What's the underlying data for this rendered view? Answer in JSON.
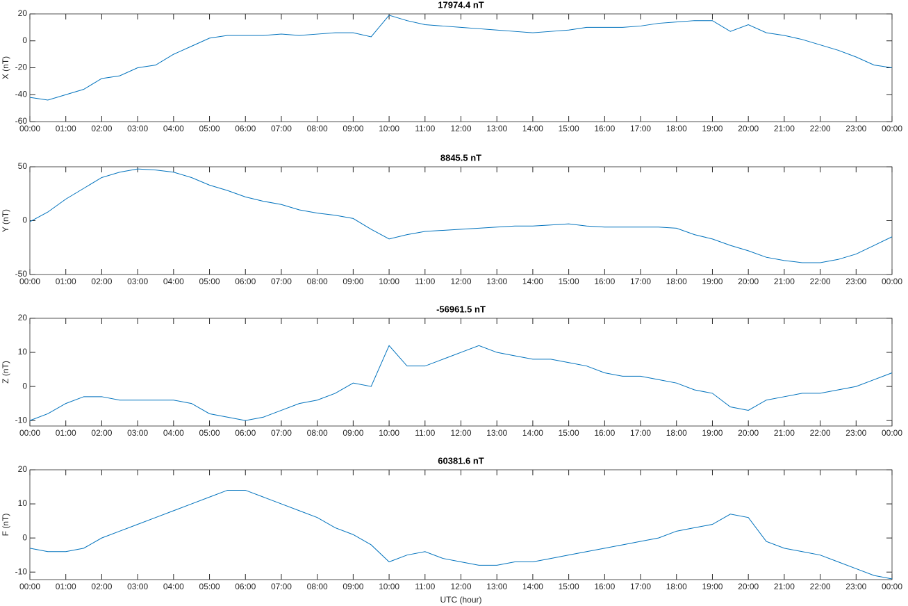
{
  "chart_data": [
    {
      "type": "line",
      "title": "17974.4 nT",
      "ylabel": "X (nT)",
      "color": "#0072bd",
      "x": [
        0,
        0.5,
        1,
        1.5,
        2,
        2.5,
        3,
        3.5,
        4,
        4.5,
        5,
        5.5,
        6,
        6.5,
        7,
        7.5,
        8,
        8.5,
        9,
        9.5,
        10,
        10.5,
        11,
        11.5,
        12,
        12.5,
        13,
        13.5,
        14,
        14.5,
        15,
        15.5,
        16,
        16.5,
        17,
        17.5,
        18,
        18.5,
        19,
        19.5,
        20,
        20.5,
        21,
        21.5,
        22,
        22.5,
        23,
        23.5,
        24
      ],
      "values": [
        -42,
        -44,
        -40,
        -36,
        -28,
        -26,
        -20,
        -18,
        -10,
        -4,
        2,
        4,
        4,
        4,
        5,
        4,
        5,
        6,
        6,
        3,
        19,
        15,
        12,
        11,
        10,
        9,
        8,
        7,
        6,
        7,
        8,
        10,
        10,
        10,
        11,
        13,
        14,
        15,
        15,
        7,
        12,
        6,
        4,
        1,
        -3,
        -7,
        -12,
        -18,
        -20
      ],
      "xlim": [
        0,
        24
      ],
      "ylim": [
        -60,
        20
      ],
      "yticks": [
        -60,
        -40,
        -20,
        0,
        20
      ],
      "xticks": [
        {
          "value": 0,
          "label": "00:00"
        },
        {
          "value": 1,
          "label": "01:00"
        },
        {
          "value": 2,
          "label": "02:00"
        },
        {
          "value": 3,
          "label": "03:00"
        },
        {
          "value": 4,
          "label": "04:00"
        },
        {
          "value": 5,
          "label": "05:00"
        },
        {
          "value": 6,
          "label": "06:00"
        },
        {
          "value": 7,
          "label": "07:00"
        },
        {
          "value": 8,
          "label": "08:00"
        },
        {
          "value": 9,
          "label": "09:00"
        },
        {
          "value": 10,
          "label": "10:00"
        },
        {
          "value": 11,
          "label": "11:00"
        },
        {
          "value": 12,
          "label": "12:00"
        },
        {
          "value": 13,
          "label": "13:00"
        },
        {
          "value": 14,
          "label": "14:00"
        },
        {
          "value": 15,
          "label": "15:00"
        },
        {
          "value": 16,
          "label": "16:00"
        },
        {
          "value": 17,
          "label": "17:00"
        },
        {
          "value": 18,
          "label": "18:00"
        },
        {
          "value": 19,
          "label": "19:00"
        },
        {
          "value": 20,
          "label": "20:00"
        },
        {
          "value": 21,
          "label": "21:00"
        },
        {
          "value": 22,
          "label": "22:00"
        },
        {
          "value": 23,
          "label": "23:00"
        },
        {
          "value": 24,
          "label": "00:00"
        }
      ]
    },
    {
      "type": "line",
      "title": "8845.5 nT",
      "ylabel": "Y (nT)",
      "color": "#0072bd",
      "x": [
        0,
        0.5,
        1,
        1.5,
        2,
        2.5,
        3,
        3.5,
        4,
        4.5,
        5,
        5.5,
        6,
        6.5,
        7,
        7.5,
        8,
        8.5,
        9,
        9.5,
        10,
        10.5,
        11,
        11.5,
        12,
        12.5,
        13,
        13.5,
        14,
        14.5,
        15,
        15.5,
        16,
        16.5,
        17,
        17.5,
        18,
        18.5,
        19,
        19.5,
        20,
        20.5,
        21,
        21.5,
        22,
        22.5,
        23,
        23.5,
        24
      ],
      "values": [
        -1,
        8,
        20,
        30,
        40,
        45,
        48,
        47,
        45,
        40,
        33,
        28,
        22,
        18,
        15,
        10,
        7,
        5,
        2,
        -8,
        -17,
        -13,
        -10,
        -9,
        -8,
        -7,
        -6,
        -5,
        -5,
        -4,
        -3,
        -5,
        -6,
        -6,
        -6,
        -6,
        -7,
        -13,
        -17,
        -23,
        -28,
        -34,
        -37,
        -39,
        -39,
        -36,
        -31,
        -23,
        -15
      ],
      "xlim": [
        0,
        24
      ],
      "ylim": [
        -50,
        50
      ],
      "yticks": [
        -50,
        0,
        50
      ],
      "xticks": [
        {
          "value": 0,
          "label": "00:00"
        },
        {
          "value": 1,
          "label": "01:00"
        },
        {
          "value": 2,
          "label": "02:00"
        },
        {
          "value": 3,
          "label": "03:00"
        },
        {
          "value": 4,
          "label": "04:00"
        },
        {
          "value": 5,
          "label": "05:00"
        },
        {
          "value": 6,
          "label": "06:00"
        },
        {
          "value": 7,
          "label": "07:00"
        },
        {
          "value": 8,
          "label": "08:00"
        },
        {
          "value": 9,
          "label": "09:00"
        },
        {
          "value": 10,
          "label": "10:00"
        },
        {
          "value": 11,
          "label": "11:00"
        },
        {
          "value": 12,
          "label": "12:00"
        },
        {
          "value": 13,
          "label": "13:00"
        },
        {
          "value": 14,
          "label": "14:00"
        },
        {
          "value": 15,
          "label": "15:00"
        },
        {
          "value": 16,
          "label": "16:00"
        },
        {
          "value": 17,
          "label": "17:00"
        },
        {
          "value": 18,
          "label": "18:00"
        },
        {
          "value": 19,
          "label": "19:00"
        },
        {
          "value": 20,
          "label": "20:00"
        },
        {
          "value": 21,
          "label": "21:00"
        },
        {
          "value": 22,
          "label": "22:00"
        },
        {
          "value": 23,
          "label": "23:00"
        },
        {
          "value": 24,
          "label": "00:00"
        }
      ]
    },
    {
      "type": "line",
      "title": "-56961.5 nT",
      "ylabel": "Z (nT)",
      "color": "#0072bd",
      "x": [
        0,
        0.5,
        1,
        1.5,
        2,
        2.5,
        3,
        3.5,
        4,
        4.5,
        5,
        5.5,
        6,
        6.5,
        7,
        7.5,
        8,
        8.5,
        9,
        9.5,
        10,
        10.5,
        11,
        11.5,
        12,
        12.5,
        13,
        13.5,
        14,
        14.5,
        15,
        15.5,
        16,
        16.5,
        17,
        17.5,
        18,
        18.5,
        19,
        19.5,
        20,
        20.5,
        21,
        21.5,
        22,
        22.5,
        23,
        23.5,
        24
      ],
      "values": [
        -10,
        -8,
        -5,
        -3,
        -3,
        -4,
        -4,
        -4,
        -4,
        -5,
        -8,
        -9,
        -10,
        -9,
        -7,
        -5,
        -4,
        -2,
        1,
        0,
        12,
        6,
        6,
        8,
        10,
        12,
        10,
        9,
        8,
        8,
        7,
        6,
        4,
        3,
        3,
        2,
        1,
        -1,
        -2,
        -6,
        -7,
        -4,
        -3,
        -2,
        -2,
        -1,
        0,
        2,
        4
      ],
      "xlim": [
        0,
        24
      ],
      "ylim": [
        -11.6,
        20
      ],
      "yticks": [
        -10,
        0,
        10,
        20
      ],
      "xticks": [
        {
          "value": 0,
          "label": "00:00"
        },
        {
          "value": 1,
          "label": "01:00"
        },
        {
          "value": 2,
          "label": "02:00"
        },
        {
          "value": 3,
          "label": "03:00"
        },
        {
          "value": 4,
          "label": "04:00"
        },
        {
          "value": 5,
          "label": "05:00"
        },
        {
          "value": 6,
          "label": "06:00"
        },
        {
          "value": 7,
          "label": "07:00"
        },
        {
          "value": 8,
          "label": "08:00"
        },
        {
          "value": 9,
          "label": "09:00"
        },
        {
          "value": 10,
          "label": "10:00"
        },
        {
          "value": 11,
          "label": "11:00"
        },
        {
          "value": 12,
          "label": "12:00"
        },
        {
          "value": 13,
          "label": "13:00"
        },
        {
          "value": 14,
          "label": "14:00"
        },
        {
          "value": 15,
          "label": "15:00"
        },
        {
          "value": 16,
          "label": "16:00"
        },
        {
          "value": 17,
          "label": "17:00"
        },
        {
          "value": 18,
          "label": "18:00"
        },
        {
          "value": 19,
          "label": "19:00"
        },
        {
          "value": 20,
          "label": "20:00"
        },
        {
          "value": 21,
          "label": "21:00"
        },
        {
          "value": 22,
          "label": "22:00"
        },
        {
          "value": 23,
          "label": "23:00"
        },
        {
          "value": 24,
          "label": "00:00"
        }
      ]
    },
    {
      "type": "line",
      "title": "60381.6 nT",
      "ylabel": "F (nT)",
      "xlabel": "UTC (hour)",
      "color": "#0072bd",
      "x": [
        0,
        0.5,
        1,
        1.5,
        2,
        2.5,
        3,
        3.5,
        4,
        4.5,
        5,
        5.5,
        6,
        6.5,
        7,
        7.5,
        8,
        8.5,
        9,
        9.5,
        10,
        10.5,
        11,
        11.5,
        12,
        12.5,
        13,
        13.5,
        14,
        14.5,
        15,
        15.5,
        16,
        16.5,
        17,
        17.5,
        18,
        18.5,
        19,
        19.5,
        20,
        20.5,
        21,
        21.5,
        22,
        22.5,
        23,
        23.5,
        24
      ],
      "values": [
        -3,
        -4,
        -4,
        -3,
        0,
        2,
        4,
        6,
        8,
        10,
        12,
        14,
        14,
        12,
        10,
        8,
        6,
        3,
        1,
        -2,
        -7,
        -5,
        -4,
        -6,
        -7,
        -8,
        -8,
        -7,
        -7,
        -6,
        -5,
        -4,
        -3,
        -2,
        -1,
        0,
        2,
        3,
        4,
        7,
        6,
        -1,
        -3,
        -4,
        -5,
        -7,
        -9,
        -11,
        -12
      ],
      "xlim": [
        0,
        24
      ],
      "ylim": [
        -12.2,
        20
      ],
      "yticks": [
        -10,
        0,
        10,
        20
      ],
      "xticks": [
        {
          "value": 0,
          "label": "00:00"
        },
        {
          "value": 1,
          "label": "01:00"
        },
        {
          "value": 2,
          "label": "02:00"
        },
        {
          "value": 3,
          "label": "03:00"
        },
        {
          "value": 4,
          "label": "04:00"
        },
        {
          "value": 5,
          "label": "05:00"
        },
        {
          "value": 6,
          "label": "06:00"
        },
        {
          "value": 7,
          "label": "07:00"
        },
        {
          "value": 8,
          "label": "08:00"
        },
        {
          "value": 9,
          "label": "09:00"
        },
        {
          "value": 10,
          "label": "10:00"
        },
        {
          "value": 11,
          "label": "11:00"
        },
        {
          "value": 12,
          "label": "12:00"
        },
        {
          "value": 13,
          "label": "13:00"
        },
        {
          "value": 14,
          "label": "14:00"
        },
        {
          "value": 15,
          "label": "15:00"
        },
        {
          "value": 16,
          "label": "16:00"
        },
        {
          "value": 17,
          "label": "17:00"
        },
        {
          "value": 18,
          "label": "18:00"
        },
        {
          "value": 19,
          "label": "19:00"
        },
        {
          "value": 20,
          "label": "20:00"
        },
        {
          "value": 21,
          "label": "21:00"
        },
        {
          "value": 22,
          "label": "22:00"
        },
        {
          "value": 23,
          "label": "23:00"
        },
        {
          "value": 24,
          "label": "00:00"
        }
      ]
    }
  ]
}
